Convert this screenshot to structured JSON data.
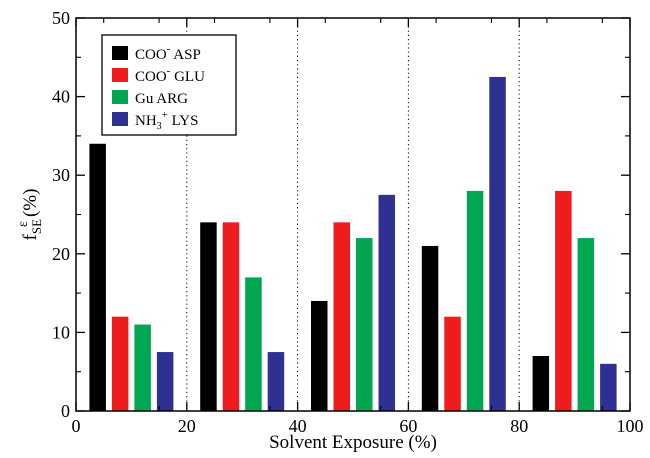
{
  "chart_data": {
    "type": "bar",
    "xlabel": "Solvent Exposure (%)",
    "ylabel": {
      "main": "f",
      "sub": "SE",
      "sup": "ε",
      "tail": "(%)"
    },
    "xlim": [
      0,
      100
    ],
    "ylim": [
      0,
      50
    ],
    "x_ticks": [
      0,
      20,
      40,
      60,
      80,
      100
    ],
    "y_ticks": [
      0,
      10,
      20,
      30,
      40,
      50
    ],
    "grid": "vertical dotted at 20, 40, 60, 80",
    "legend_position": "top-left",
    "bin_centers": [
      10,
      30,
      50,
      70,
      90
    ],
    "series": [
      {
        "name": {
          "main": "COO",
          "sup": "-",
          "tail": " ASP"
        },
        "color": "#000000",
        "values": [
          34,
          24,
          14,
          21,
          7
        ]
      },
      {
        "name": {
          "main": "COO",
          "sup": "-",
          "tail": " GLU"
        },
        "color": "#ee1c1c",
        "values": [
          12,
          24,
          24,
          12,
          28
        ]
      },
      {
        "name": {
          "main": "Gu ARG",
          "sup": "",
          "tail": ""
        },
        "color": "#00a651",
        "values": [
          11,
          17,
          22,
          28,
          22
        ]
      },
      {
        "name": {
          "main": "NH",
          "sub": "3",
          "sup": "+",
          "tail": " LYS"
        },
        "color": "#2e3192",
        "values": [
          7.5,
          7.5,
          27.5,
          42.5,
          6
        ]
      }
    ]
  }
}
